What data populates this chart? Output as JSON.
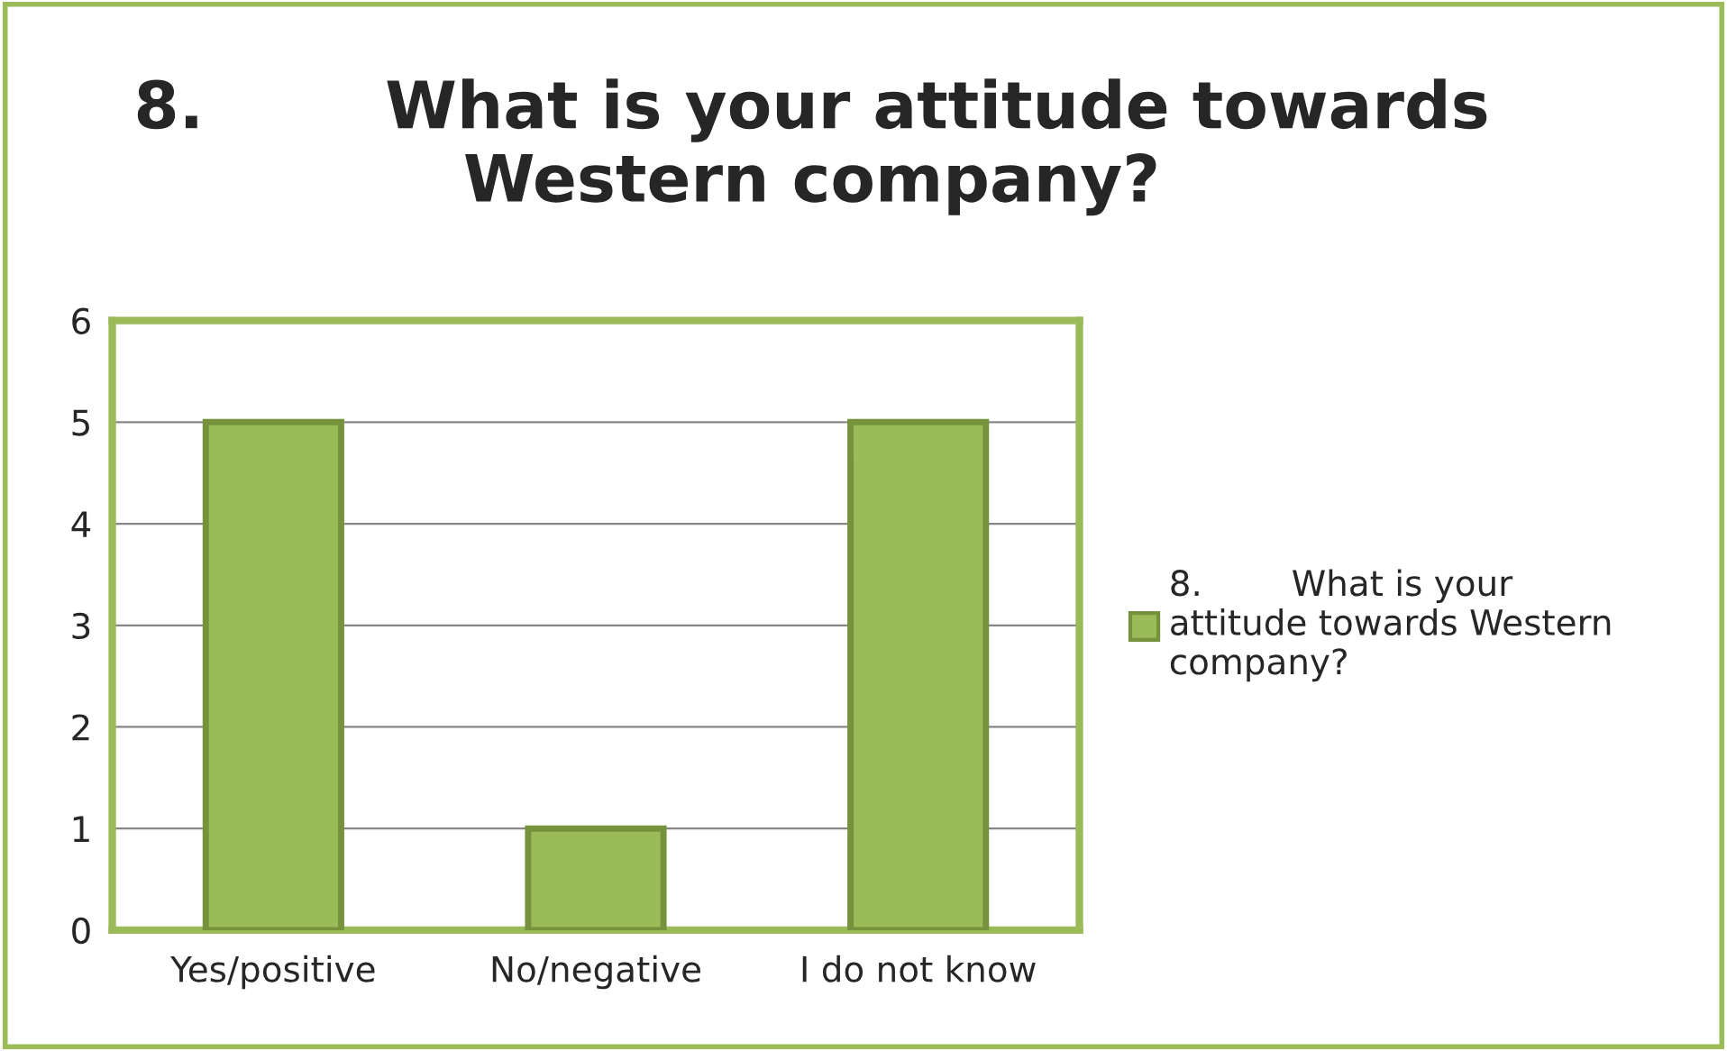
{
  "chart_data": {
    "type": "bar",
    "title": "8.        What is your attitude towards\nWestern company?",
    "categories": [
      "Yes/positive",
      "No/negative",
      "I do not know"
    ],
    "series": [
      {
        "name": "8.        What is your\nattitude towards Western\ncompany?",
        "color": "#9bbb59",
        "values": [
          5,
          1,
          5
        ]
      }
    ],
    "ylim": [
      0,
      6
    ],
    "yticks": [
      0,
      1,
      2,
      3,
      4,
      5,
      6
    ],
    "grid": "y",
    "legend": "right"
  }
}
